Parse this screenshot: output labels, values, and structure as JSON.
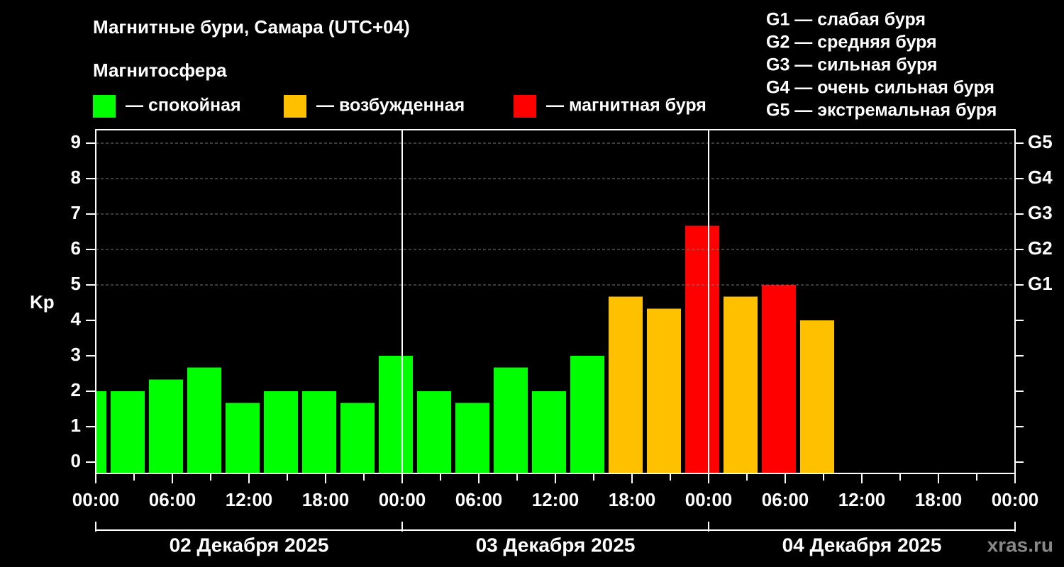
{
  "chart_data": {
    "type": "bar",
    "title": "Магнитные бури, Самара (UTC+04)",
    "subtitle": "Магнитосфера",
    "ylabel": "Kp",
    "legend": [
      {
        "label": "— спокойная",
        "color": "#00ff00"
      },
      {
        "label": "— возбужденная",
        "color": "#ffc000"
      },
      {
        "label": "— магнитная буря",
        "color": "#ff0000"
      }
    ],
    "scale_notes": [
      "G1 — слабая буря",
      "G2 — средняя буря",
      "G3 — сильная буря",
      "G4 — очень сильная буря",
      "G5 — экстремальная буря"
    ],
    "x": [
      -0.5,
      2.5,
      5.5,
      8.5,
      11.5,
      14.5,
      17.5,
      20.5,
      23.5,
      26.5,
      29.5,
      32.5,
      35.5,
      38.5,
      41.5,
      44.5,
      47.5,
      50.5,
      53.5,
      56.5
    ],
    "values": [
      2,
      2,
      2.33,
      2.67,
      1.67,
      2,
      2,
      1.67,
      3,
      2,
      1.67,
      2.67,
      2,
      3,
      4.67,
      4.33,
      6.67,
      4.67,
      5,
      4
    ],
    "colors": [
      "#00ff00",
      "#00ff00",
      "#00ff00",
      "#00ff00",
      "#00ff00",
      "#00ff00",
      "#00ff00",
      "#00ff00",
      "#00ff00",
      "#00ff00",
      "#00ff00",
      "#00ff00",
      "#00ff00",
      "#00ff00",
      "#ffc000",
      "#ffc000",
      "#ff0000",
      "#ffc000",
      "#ff0000",
      "#ffc000"
    ],
    "xlim": [
      0,
      72
    ],
    "xticks": [
      {
        "value": 0,
        "label": "00:00"
      },
      {
        "value": 6,
        "label": "06:00"
      },
      {
        "value": 12,
        "label": "12:00"
      },
      {
        "value": 18,
        "label": "18:00"
      },
      {
        "value": 24,
        "label": "00:00"
      },
      {
        "value": 30,
        "label": "06:00"
      },
      {
        "value": 36,
        "label": "12:00"
      },
      {
        "value": 42,
        "label": "18:00"
      },
      {
        "value": 48,
        "label": "00:00"
      },
      {
        "value": 54,
        "label": "06:00"
      },
      {
        "value": 60,
        "label": "12:00"
      },
      {
        "value": 66,
        "label": "18:00"
      },
      {
        "value": 72,
        "label": "00:00"
      }
    ],
    "day_separators": [
      24,
      48
    ],
    "date_labels": [
      {
        "value": 12,
        "label": "02 Декабря 2025"
      },
      {
        "value": 36,
        "label": "03 Декабря 2025"
      },
      {
        "value": 60,
        "label": "04 Декабря 2025"
      }
    ],
    "ylim": [
      -0.32,
      9.38
    ],
    "yticks": [
      0,
      1,
      2,
      3,
      4,
      5,
      6,
      7,
      8,
      9
    ],
    "y2ticks": [
      {
        "value": 5,
        "label": "G1"
      },
      {
        "value": 6,
        "label": "G2"
      },
      {
        "value": 7,
        "label": "G3"
      },
      {
        "value": 8,
        "label": "G4"
      },
      {
        "value": 9,
        "label": "G5"
      }
    ],
    "grid": true,
    "watermark": "xras.ru"
  }
}
